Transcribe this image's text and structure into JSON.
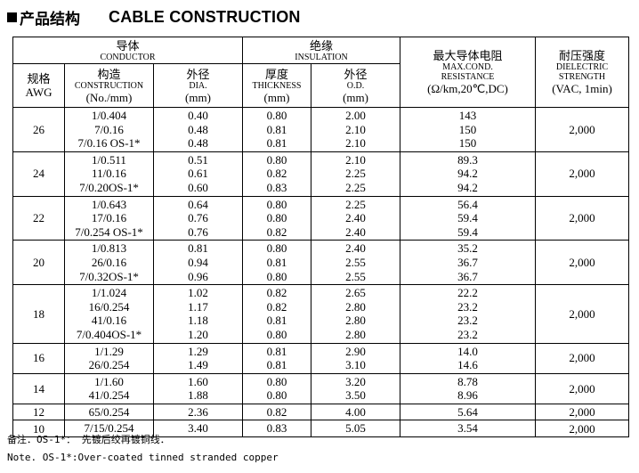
{
  "title": {
    "cn": "产品结构",
    "en": "CABLE CONSTRUCTION"
  },
  "header": {
    "conductor_cn": "导体",
    "conductor_en": "CONDUCTOR",
    "insulation_cn": "绝缘",
    "insulation_en": "INSULATION",
    "resistance_cn": "最大导体电阻",
    "resistance_en1": "MAX.COND.",
    "resistance_en2": "RESISTANCE",
    "resistance_unit": "(Ω/km,20℃,DC)",
    "dielectric_cn": "耐压强度",
    "dielectric_en1": "DIELECTRIC",
    "dielectric_en2": "STRENGTH",
    "dielectric_unit": "(VAC, 1min)",
    "awg_cn": "规格",
    "awg_en": "AWG",
    "construction_cn": "构造",
    "construction_en": "CONSTRUCTION",
    "construction_unit": "(No./mm)",
    "dia_cn": "外径",
    "dia_en": "DIA.",
    "dia_unit": "(mm)",
    "thickness_cn": "厚度",
    "thickness_en": "THICKNESS",
    "thickness_unit": "(mm)",
    "od_cn": "外径",
    "od_en": "O.D.",
    "od_unit": "(mm)"
  },
  "rows": [
    {
      "awg": "26",
      "construction": [
        "1/0.404",
        "7/0.16",
        "7/0.16 OS-1*"
      ],
      "dia": [
        "0.40",
        "0.48",
        "0.48"
      ],
      "thickness": [
        "0.80",
        "0.81",
        "0.81"
      ],
      "od": [
        "2.00",
        "2.10",
        "2.10"
      ],
      "resistance": [
        "143",
        "150",
        "150"
      ],
      "dielectric": "2,000"
    },
    {
      "awg": "24",
      "construction": [
        "1/0.511",
        "11/0.16",
        "7/0.20OS-1*"
      ],
      "dia": [
        "0.51",
        "0.61",
        "0.60"
      ],
      "thickness": [
        "0.80",
        "0.82",
        "0.83"
      ],
      "od": [
        "2.10",
        "2.25",
        "2.25"
      ],
      "resistance": [
        "89.3",
        "94.2",
        "94.2"
      ],
      "dielectric": "2,000"
    },
    {
      "awg": "22",
      "construction": [
        "1/0.643",
        "17/0.16",
        "7/0.254 OS-1*"
      ],
      "dia": [
        "0.64",
        "0.76",
        "0.76"
      ],
      "thickness": [
        "0.80",
        "0.80",
        "0.82"
      ],
      "od": [
        "2.25",
        "2.40",
        "2.40"
      ],
      "resistance": [
        "56.4",
        "59.4",
        "59.4"
      ],
      "dielectric": "2,000"
    },
    {
      "awg": "20",
      "construction": [
        "1/0.813",
        "26/0.16",
        "7/0.32OS-1*"
      ],
      "dia": [
        "0.81",
        "0.94",
        "0.96"
      ],
      "thickness": [
        "0.80",
        "0.81",
        "0.80"
      ],
      "od": [
        "2.40",
        "2.55",
        "2.55"
      ],
      "resistance": [
        "35.2",
        "36.7",
        "36.7"
      ],
      "dielectric": "2,000"
    },
    {
      "awg": "18",
      "construction": [
        "1/1.024",
        "16/0.254",
        "41/0.16",
        "7/0.404OS-1*"
      ],
      "dia": [
        "1.02",
        "1.17",
        "1.18",
        "1.20"
      ],
      "thickness": [
        "0.82",
        "0.82",
        "0.81",
        "0.80"
      ],
      "od": [
        "2.65",
        "2.80",
        "2.80",
        "2.80"
      ],
      "resistance": [
        "22.2",
        "23.2",
        "23.2",
        "23.2"
      ],
      "dielectric": "2,000"
    },
    {
      "awg": "16",
      "construction": [
        "1/1.29",
        "26/0.254"
      ],
      "dia": [
        "1.29",
        "1.49"
      ],
      "thickness": [
        "0.81",
        "0.81"
      ],
      "od": [
        "2.90",
        "3.10"
      ],
      "resistance": [
        "14.0",
        "14.6"
      ],
      "dielectric": "2,000"
    },
    {
      "awg": "14",
      "construction": [
        "1/1.60",
        "41/0.254"
      ],
      "dia": [
        "1.60",
        "1.88"
      ],
      "thickness": [
        "0.80",
        "0.80"
      ],
      "od": [
        "3.20",
        "3.50"
      ],
      "resistance": [
        "8.78",
        "8.96"
      ],
      "dielectric": "2,000"
    },
    {
      "awg": "12",
      "construction": [
        "65/0.254"
      ],
      "dia": [
        "2.36"
      ],
      "thickness": [
        "0.82"
      ],
      "od": [
        "4.00"
      ],
      "resistance": [
        "5.64"
      ],
      "dielectric": "2,000"
    },
    {
      "awg": "10",
      "construction": [
        "7/15/0.254"
      ],
      "dia": [
        "3.40"
      ],
      "thickness": [
        "0.83"
      ],
      "od": [
        "5.05"
      ],
      "resistance": [
        "3.54"
      ],
      "dielectric": "2,000"
    }
  ],
  "notes": {
    "cn": "备注．OS-1*：  先镀后绞再镀铜线．",
    "en": "Note. OS-1*:Over-coated tinned stranded copper"
  }
}
